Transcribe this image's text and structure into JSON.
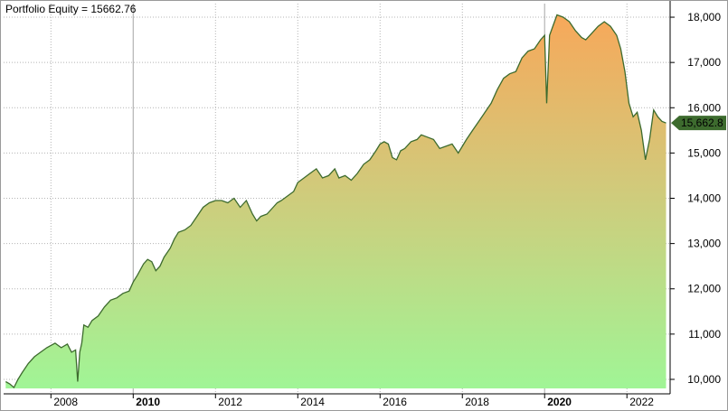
{
  "chart_data": {
    "type": "area",
    "title": "Portfolio Equity = 15662.76",
    "xlabel": "",
    "ylabel": "",
    "xlim": [
      2006.85,
      2023.05
    ],
    "ylim": [
      9800,
      18300
    ],
    "x_ticks": [
      {
        "value": 2008,
        "label": "2008",
        "bold": false
      },
      {
        "value": 2010,
        "label": "2010",
        "bold": true
      },
      {
        "value": 2012,
        "label": "2012",
        "bold": false
      },
      {
        "value": 2014,
        "label": "2014",
        "bold": false
      },
      {
        "value": 2016,
        "label": "2016",
        "bold": false
      },
      {
        "value": 2018,
        "label": "2018",
        "bold": false
      },
      {
        "value": 2020,
        "label": "2020",
        "bold": true
      },
      {
        "value": 2022,
        "label": "2022",
        "bold": false
      }
    ],
    "y_ticks": [
      {
        "value": 10000,
        "label": "10,000"
      },
      {
        "value": 11000,
        "label": "11,000"
      },
      {
        "value": 12000,
        "label": "12,000"
      },
      {
        "value": 13000,
        "label": "13,000"
      },
      {
        "value": 14000,
        "label": "14,000"
      },
      {
        "value": 15000,
        "label": "15,000"
      },
      {
        "value": 16000,
        "label": "16,000"
      },
      {
        "value": 17000,
        "label": "17,000"
      },
      {
        "value": 18000,
        "label": "18,000"
      }
    ],
    "grid": true,
    "last_value_label": "15,662.8",
    "colors": {
      "line": "#3d6b2e",
      "fill_bottom": "#a0f596",
      "fill_mid": "#d2c97a",
      "fill_top": "#f7a85a",
      "grid": "#b4b4b4",
      "axis": "#000000",
      "marker": "#3d6b2e"
    },
    "series": [
      {
        "x": [
          2006.9,
          2007.0,
          2007.1,
          2007.2,
          2007.3,
          2007.45,
          2007.6,
          2007.75,
          2007.9,
          2008.0,
          2008.1,
          2008.25,
          2008.4,
          2008.5,
          2008.6,
          2008.65,
          2008.7,
          2008.75,
          2008.8,
          2008.9,
          2009.0,
          2009.15,
          2009.3,
          2009.45,
          2009.6,
          2009.75,
          2009.9,
          2010.0,
          2010.1,
          2010.25,
          2010.35,
          2010.45,
          2010.55,
          2010.65,
          2010.75,
          2010.9,
          2011.0,
          2011.1,
          2011.25,
          2011.4,
          2011.55,
          2011.7,
          2011.85,
          2012.0,
          2012.15,
          2012.3,
          2012.45,
          2012.6,
          2012.75,
          2012.9,
          2013.0,
          2013.1,
          2013.25,
          2013.4,
          2013.5,
          2013.6,
          2013.75,
          2013.9,
          2014.0,
          2014.15,
          2014.3,
          2014.45,
          2014.6,
          2014.75,
          2014.9,
          2015.0,
          2015.15,
          2015.3,
          2015.45,
          2015.6,
          2015.75,
          2015.9,
          2016.0,
          2016.1,
          2016.2,
          2016.3,
          2016.4,
          2016.5,
          2016.6,
          2016.75,
          2016.9,
          2017.0,
          2017.15,
          2017.3,
          2017.45,
          2017.6,
          2017.75,
          2017.9,
          2018.0,
          2018.1,
          2018.25,
          2018.4,
          2018.55,
          2018.7,
          2018.85,
          2019.0,
          2019.15,
          2019.3,
          2019.45,
          2019.6,
          2019.75,
          2019.9,
          2020.0,
          2020.05,
          2020.12,
          2020.2,
          2020.3,
          2020.45,
          2020.6,
          2020.75,
          2020.9,
          2021.0,
          2021.15,
          2021.3,
          2021.45,
          2021.6,
          2021.75,
          2021.85,
          2021.95,
          2022.05,
          2022.15,
          2022.25,
          2022.35,
          2022.45,
          2022.55,
          2022.65,
          2022.75,
          2022.85,
          2022.95
        ],
        "y": [
          9950,
          9900,
          9820,
          10000,
          10150,
          10350,
          10500,
          10600,
          10700,
          10750,
          10800,
          10700,
          10780,
          10600,
          10650,
          9950,
          10600,
          10800,
          11200,
          11150,
          11300,
          11400,
          11600,
          11750,
          11800,
          11900,
          11950,
          12150,
          12300,
          12550,
          12650,
          12600,
          12400,
          12500,
          12700,
          12900,
          13100,
          13250,
          13300,
          13400,
          13600,
          13800,
          13900,
          13950,
          13950,
          13900,
          14000,
          13800,
          13950,
          13650,
          13500,
          13600,
          13650,
          13800,
          13900,
          13950,
          14050,
          14150,
          14350,
          14450,
          14550,
          14650,
          14450,
          14500,
          14650,
          14450,
          14500,
          14400,
          14550,
          14750,
          14850,
          15050,
          15200,
          15250,
          15200,
          14900,
          14850,
          15050,
          15100,
          15250,
          15300,
          15400,
          15350,
          15300,
          15100,
          15150,
          15200,
          15000,
          15150,
          15300,
          15500,
          15700,
          15900,
          16100,
          16400,
          16650,
          16750,
          16800,
          17100,
          17250,
          17300,
          17500,
          17600,
          16100,
          17600,
          17800,
          18050,
          18000,
          17900,
          17700,
          17550,
          17500,
          17650,
          17800,
          17900,
          17800,
          17600,
          17300,
          16800,
          16100,
          15800,
          15900,
          15500,
          14850,
          15300,
          15950,
          15800,
          15700,
          15662.76
        ]
      }
    ]
  }
}
